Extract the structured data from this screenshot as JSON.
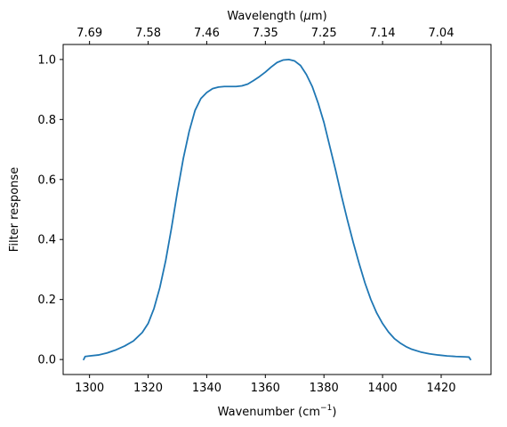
{
  "chart_data": {
    "type": "line",
    "title": "",
    "xlabel": "Wavenumber (cm",
    "xlabel_sup": "−1",
    "xlabel_end": ")",
    "ylabel": "Filter response",
    "top_xlabel": "Wavelength (",
    "top_xlabel_mu": "μ",
    "top_xlabel_end": "m)",
    "xlim": [
      1291,
      1437
    ],
    "ylim": [
      -0.05,
      1.05
    ],
    "grid": false,
    "x_ticks": [
      1300,
      1320,
      1340,
      1360,
      1380,
      1400,
      1420
    ],
    "x_tick_labels": [
      "1300",
      "1320",
      "1340",
      "1360",
      "1380",
      "1400",
      "1420"
    ],
    "y_ticks": [
      0.0,
      0.2,
      0.4,
      0.6,
      0.8,
      1.0
    ],
    "y_tick_labels": [
      "0.0",
      "0.2",
      "0.4",
      "0.6",
      "0.8",
      "1.0"
    ],
    "top_x_tick_positions": [
      1300,
      1320,
      1340,
      1360,
      1380,
      1400,
      1420
    ],
    "top_x_tick_labels": [
      "7.69",
      "7.58",
      "7.46",
      "7.35",
      "7.25",
      "7.14",
      "7.04"
    ],
    "colors": {
      "series": "#1f77b4"
    },
    "series": [
      {
        "x": [
          1298,
          1298.5,
          1300,
          1303,
          1306,
          1309,
          1312,
          1315,
          1318,
          1320,
          1322,
          1324,
          1326,
          1328,
          1330,
          1332,
          1334,
          1336,
          1338,
          1340,
          1342,
          1344,
          1346,
          1348,
          1350,
          1352,
          1354,
          1356,
          1358,
          1360,
          1362,
          1364,
          1366,
          1368,
          1370,
          1372,
          1374,
          1376,
          1378,
          1380,
          1382,
          1384,
          1386,
          1388,
          1390,
          1392,
          1394,
          1396,
          1398,
          1400,
          1402,
          1404,
          1406,
          1408,
          1410,
          1413,
          1416,
          1419,
          1422,
          1425,
          1428,
          1429.5,
          1430
        ],
        "y": [
          0.0,
          0.01,
          0.012,
          0.015,
          0.022,
          0.032,
          0.045,
          0.062,
          0.09,
          0.12,
          0.17,
          0.24,
          0.33,
          0.44,
          0.56,
          0.67,
          0.76,
          0.83,
          0.87,
          0.89,
          0.903,
          0.908,
          0.91,
          0.91,
          0.91,
          0.912,
          0.918,
          0.93,
          0.943,
          0.958,
          0.975,
          0.99,
          0.998,
          1.0,
          0.995,
          0.98,
          0.95,
          0.91,
          0.855,
          0.79,
          0.71,
          0.63,
          0.545,
          0.465,
          0.39,
          0.32,
          0.255,
          0.2,
          0.155,
          0.12,
          0.092,
          0.07,
          0.055,
          0.043,
          0.034,
          0.025,
          0.019,
          0.015,
          0.012,
          0.01,
          0.009,
          0.008,
          0.0
        ]
      }
    ]
  }
}
